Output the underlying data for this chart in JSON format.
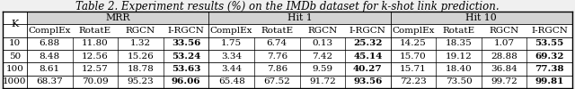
{
  "title": "Table 2. Experiment results (%) on the IMDb dataset for k-shot link prediction.",
  "col_groups": [
    {
      "label": "MRR",
      "span": 4
    },
    {
      "label": "Hit 1",
      "span": 4
    },
    {
      "label": "Hit 10",
      "span": 4
    }
  ],
  "sub_headers": [
    "ComplEx",
    "RotatE",
    "RGCN",
    "I-RGCN"
  ],
  "row_header": "K",
  "rows": [
    {
      "k": "10",
      "mrr": [
        "6.88",
        "11.80",
        "1.32",
        "33.56"
      ],
      "hit1": [
        "1.75",
        "6.74",
        "0.13",
        "25.32"
      ],
      "hit10": [
        "14.25",
        "18.35",
        "1.07",
        "53.55"
      ]
    },
    {
      "k": "50",
      "mrr": [
        "8.48",
        "12.56",
        "15.26",
        "53.24"
      ],
      "hit1": [
        "3.34",
        "7.76",
        "7.42",
        "45.14"
      ],
      "hit10": [
        "15.70",
        "19.12",
        "28.88",
        "69.32"
      ]
    },
    {
      "k": "100",
      "mrr": [
        "8.61",
        "12.57",
        "18.78",
        "53.63"
      ],
      "hit1": [
        "3.44",
        "7.86",
        "9.59",
        "40.27"
      ],
      "hit10": [
        "15.71",
        "18.40",
        "36.84",
        "77.38"
      ]
    },
    {
      "k": "1000",
      "mrr": [
        "68.37",
        "70.09",
        "95.23",
        "96.06"
      ],
      "hit1": [
        "65.48",
        "67.52",
        "91.72",
        "93.56"
      ],
      "hit10": [
        "72.23",
        "73.50",
        "99.72",
        "99.81"
      ]
    }
  ],
  "bold_col": 3,
  "title_fontsize": 8.5,
  "cell_fontsize": 7.5,
  "header_fontsize": 7.8,
  "group_bg": "#d3d3d3",
  "table_bg": "#ffffff",
  "fig_bg": "#f0f0f0"
}
